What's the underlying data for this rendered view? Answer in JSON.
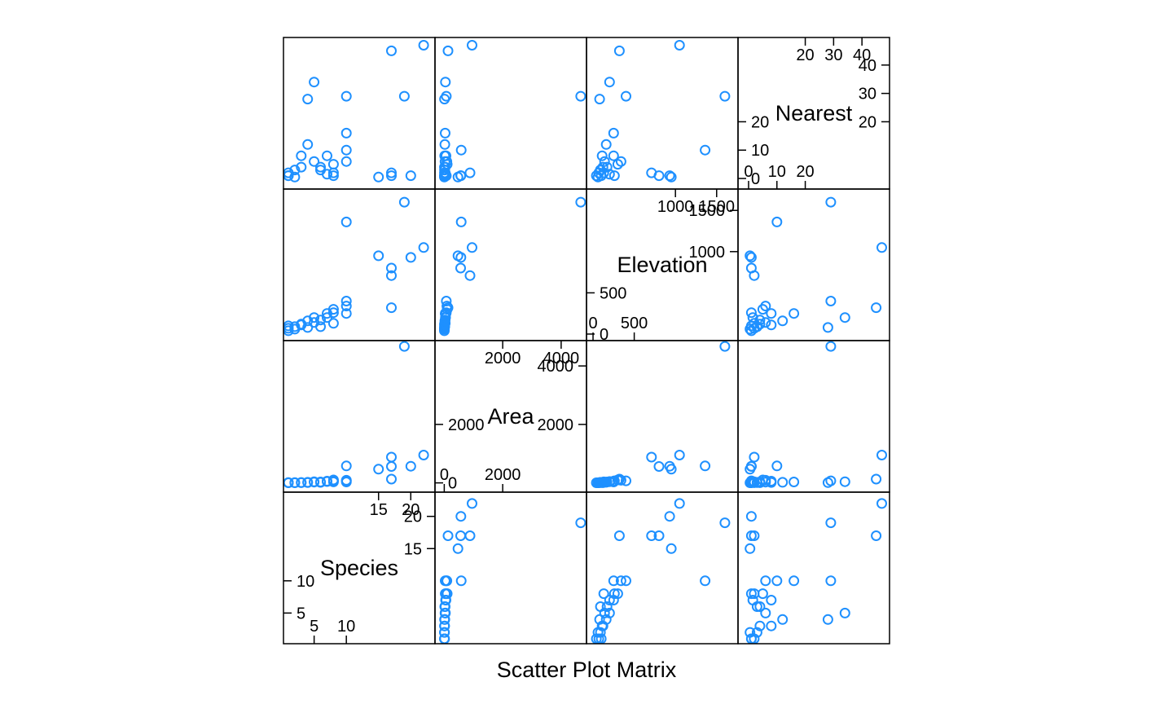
{
  "chart_data": {
    "type": "scatter",
    "kind": "scatter-plot-matrix",
    "xlabel": "Scatter Plot Matrix",
    "point_color": "#1E90FF",
    "variables": [
      {
        "name": "Species",
        "range": [
          1,
          23
        ],
        "ticks_low": [
          5,
          10
        ],
        "ticks_low_labels": [
          "5",
          "10"
        ],
        "ticks_high": [
          15,
          20
        ],
        "ticks_high_labels": [
          "15",
          "20"
        ]
      },
      {
        "name": "Area",
        "range": [
          -150,
          4700
        ],
        "ticks_low": [
          0,
          2000
        ],
        "ticks_low_labels": [
          "0",
          "2000"
        ],
        "ticks_high": [
          2000,
          4000
        ],
        "ticks_high_labels": [
          "2000",
          "4000"
        ]
      },
      {
        "name": "Elevation",
        "range": [
          -20,
          1700
        ],
        "ticks_low": [
          0,
          500
        ],
        "ticks_low_labels": [
          "0",
          "500"
        ],
        "ticks_high": [
          1000,
          1500
        ],
        "ticks_high_labels": [
          "1000",
          "1500"
        ]
      },
      {
        "name": "Nearest",
        "range": [
          -2,
          48
        ],
        "ticks_low": [
          0,
          10,
          20
        ],
        "ticks_low_labels": [
          "0",
          "10",
          "20"
        ],
        "ticks_high": [
          20,
          30,
          40
        ],
        "ticks_high_labels": [
          "20",
          "30",
          "40"
        ]
      }
    ],
    "observations": [
      {
        "Species": 1,
        "Area": 2,
        "Elevation": 40,
        "Nearest": 1
      },
      {
        "Species": 1,
        "Area": 6,
        "Elevation": 70,
        "Nearest": 2
      },
      {
        "Species": 1,
        "Area": 12,
        "Elevation": 100,
        "Nearest": 1
      },
      {
        "Species": 2,
        "Area": 3,
        "Elevation": 60,
        "Nearest": 0.5
      },
      {
        "Species": 2,
        "Area": 9,
        "Elevation": 90,
        "Nearest": 3
      },
      {
        "Species": 3,
        "Area": 5,
        "Elevation": 120,
        "Nearest": 4
      },
      {
        "Species": 3,
        "Area": 15,
        "Elevation": 110,
        "Nearest": 8
      },
      {
        "Species": 4,
        "Area": 20,
        "Elevation": 160,
        "Nearest": 12
      },
      {
        "Species": 4,
        "Area": 8,
        "Elevation": 80,
        "Nearest": 28
      },
      {
        "Species": 5,
        "Area": 25,
        "Elevation": 140,
        "Nearest": 6
      },
      {
        "Species": 5,
        "Area": 40,
        "Elevation": 200,
        "Nearest": 34
      },
      {
        "Species": 6,
        "Area": 30,
        "Elevation": 170,
        "Nearest": 4
      },
      {
        "Species": 6,
        "Area": 18,
        "Elevation": 90,
        "Nearest": 3
      },
      {
        "Species": 7,
        "Area": 60,
        "Elevation": 250,
        "Nearest": 8
      },
      {
        "Species": 7,
        "Area": 45,
        "Elevation": 200,
        "Nearest": 1.5
      },
      {
        "Species": 8,
        "Area": 100,
        "Elevation": 300,
        "Nearest": 5
      },
      {
        "Species": 8,
        "Area": 35,
        "Elevation": 130,
        "Nearest": 2
      },
      {
        "Species": 8,
        "Area": 70,
        "Elevation": 260,
        "Nearest": 1
      },
      {
        "Species": 10,
        "Area": 90,
        "Elevation": 340,
        "Nearest": 6
      },
      {
        "Species": 10,
        "Area": 30,
        "Elevation": 250,
        "Nearest": 16
      },
      {
        "Species": 10,
        "Area": 70,
        "Elevation": 400,
        "Nearest": 29
      },
      {
        "Species": 10,
        "Area": 580,
        "Elevation": 1360,
        "Nearest": 10
      },
      {
        "Species": 15,
        "Area": 470,
        "Elevation": 950,
        "Nearest": 0.5
      },
      {
        "Species": 17,
        "Area": 880,
        "Elevation": 710,
        "Nearest": 2
      },
      {
        "Species": 17,
        "Area": 560,
        "Elevation": 800,
        "Nearest": 1
      },
      {
        "Species": 17,
        "Area": 130,
        "Elevation": 320,
        "Nearest": 45
      },
      {
        "Species": 19,
        "Area": 4670,
        "Elevation": 1600,
        "Nearest": 29
      },
      {
        "Species": 20,
        "Area": 570,
        "Elevation": 930,
        "Nearest": 1
      },
      {
        "Species": 22,
        "Area": 950,
        "Elevation": 1050,
        "Nearest": 47
      }
    ]
  }
}
